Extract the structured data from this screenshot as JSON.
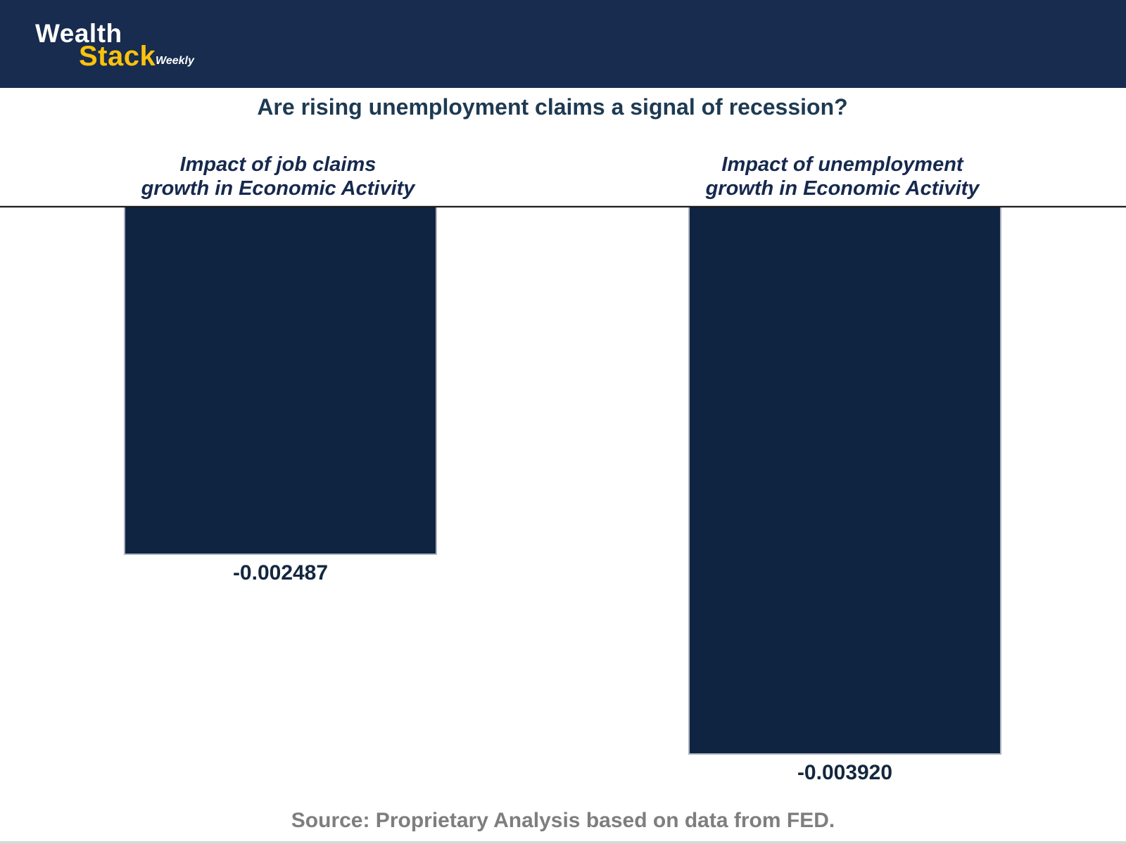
{
  "brand": {
    "name_top": "Wealth",
    "name_bottom": "Stack",
    "suffix": "Weekly"
  },
  "chart_data": {
    "type": "bar",
    "title": "Are rising unemployment claims a signal of recession?",
    "categories": [
      "Impact of job claims growth in Economic Activity",
      "Impact of unemployment growth in Economic Activity"
    ],
    "values": [
      -0.002487,
      -0.00392
    ],
    "panels": [
      {
        "subtitle_line1": "Impact of job claims",
        "subtitle_line2": "growth in Economic Activity",
        "value_label": "-0.002487"
      },
      {
        "subtitle_line1": "Impact of unemployment",
        "subtitle_line2": "growth in Economic Activity",
        "value_label": "-0.003920"
      }
    ],
    "baseline": 0,
    "bar_direction": "down",
    "axis": {
      "zero_line": true,
      "gridlines": false,
      "tick_labels_visible": false
    },
    "legend": "none",
    "source": "Source: Proprietary Analysis based on data from FED.",
    "colors": {
      "bar_fill": "#0F2441",
      "bar_edge": "#AEB3BF",
      "zero_line": "#1B1B1B"
    }
  },
  "colors": {
    "background": "#FFFFFF",
    "header_bg": "#172C4E",
    "accent_yellow": "#FCC20D",
    "logo_text": "#FFFFFF",
    "title_text": "#1E3A52",
    "subtitle_text": "#16294E",
    "value_label_text": "#13273F",
    "source_text": "#7E7E7E"
  }
}
